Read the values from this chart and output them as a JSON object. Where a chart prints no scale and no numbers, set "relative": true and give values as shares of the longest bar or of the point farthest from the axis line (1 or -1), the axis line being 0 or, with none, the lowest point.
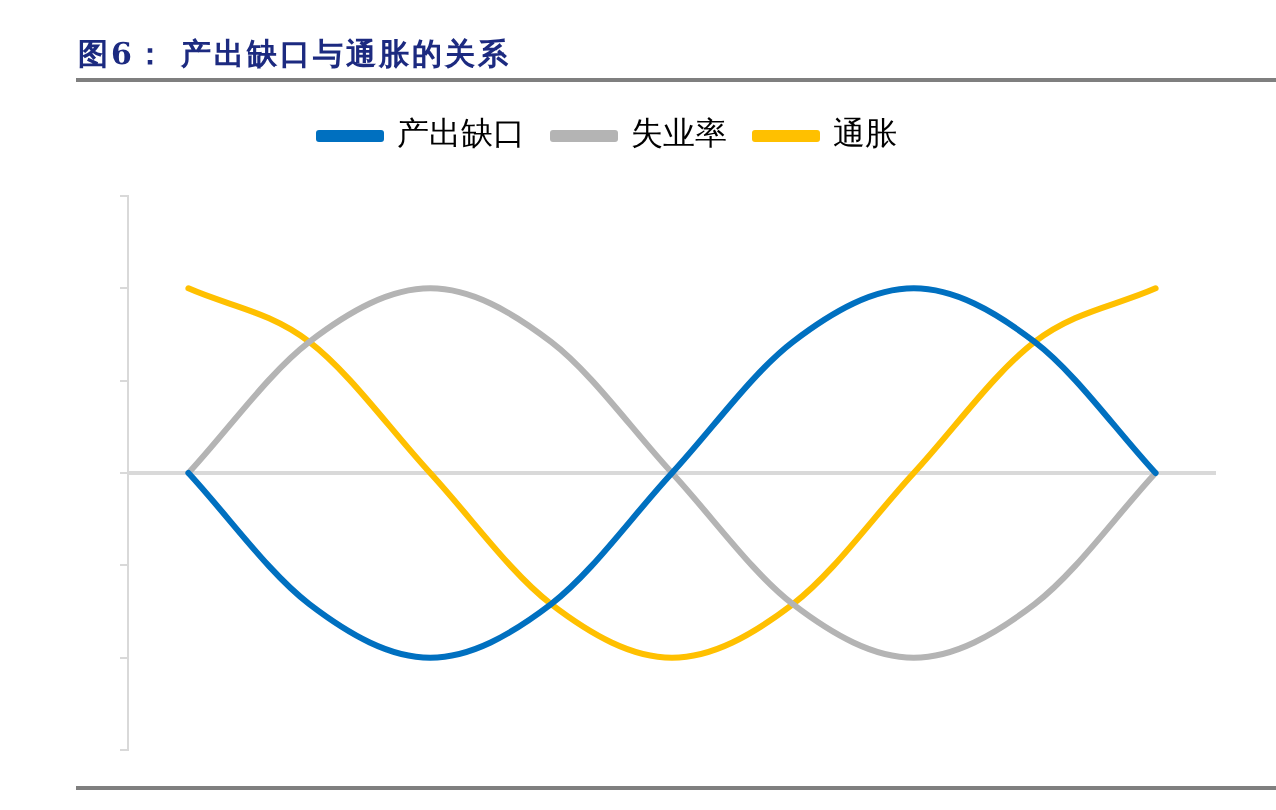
{
  "chart_data": {
    "type": "line",
    "title": "图6： 产出缺口与通胀的关系",
    "categories": [
      null,
      null,
      null,
      null,
      null,
      null,
      null,
      null,
      null
    ],
    "relative": true,
    "series": [
      {
        "name": "产出缺口",
        "color": "#0070c0",
        "values": [
          0,
          -0.71,
          -1,
          -0.71,
          0,
          0.71,
          1,
          0.71,
          0
        ]
      },
      {
        "name": "失业率",
        "color": "#b4b4b4",
        "values": [
          0,
          0.71,
          1,
          0.71,
          0,
          -0.71,
          -1,
          -0.71,
          0
        ]
      },
      {
        "name": "通胀",
        "color": "#ffc000",
        "values": [
          1,
          0.71,
          0,
          -0.71,
          -1,
          -0.71,
          0,
          0.71,
          1
        ]
      }
    ],
    "legend": "top",
    "tick_labels": false,
    "marker": "none"
  }
}
